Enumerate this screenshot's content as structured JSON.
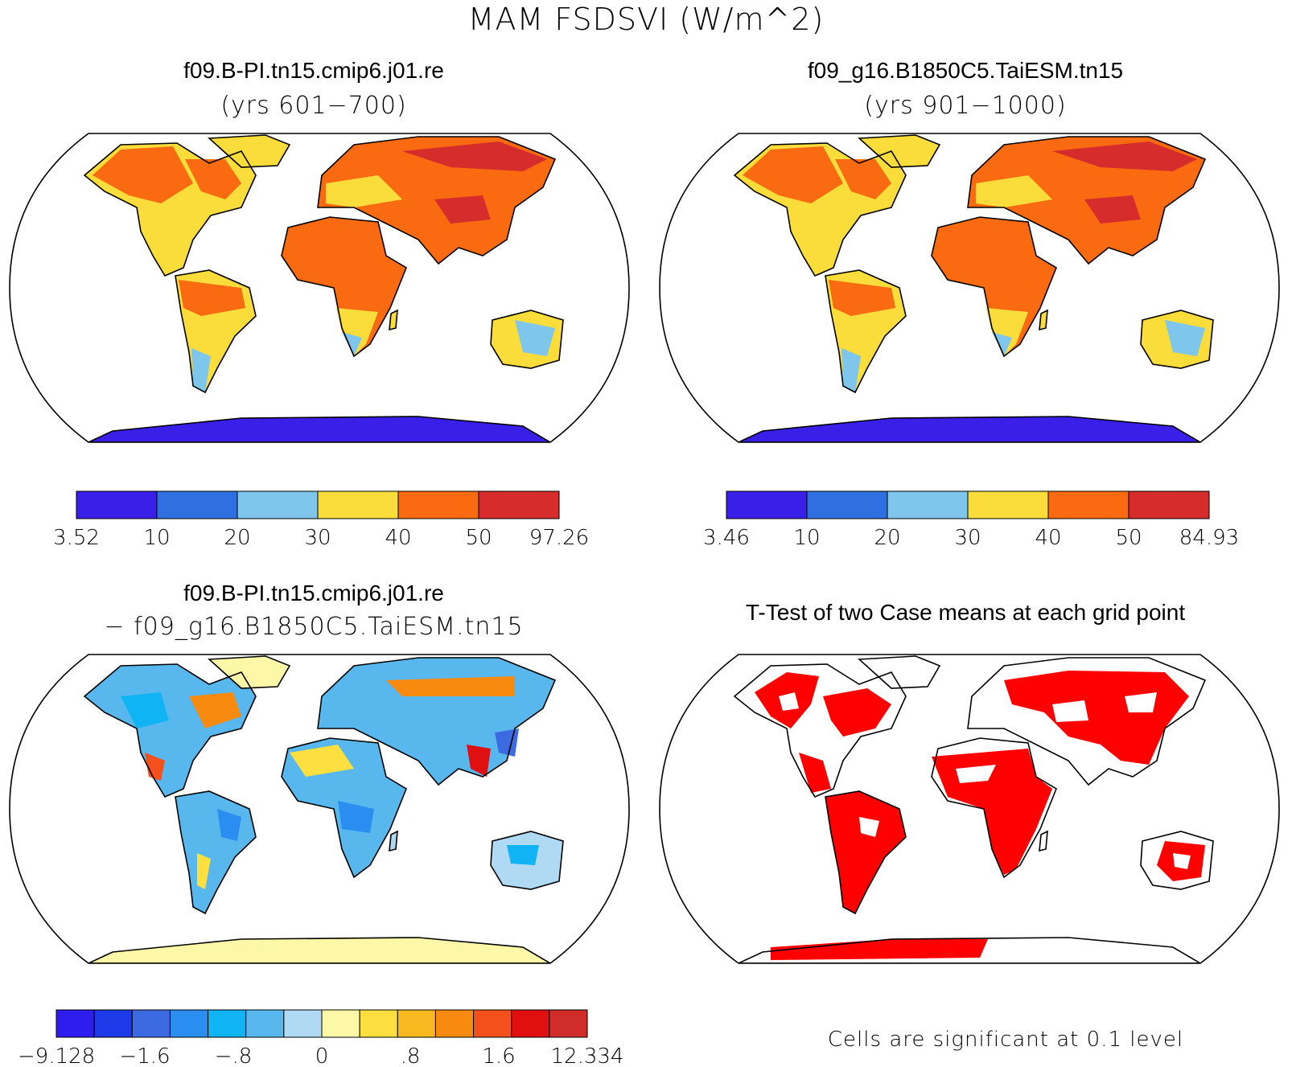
{
  "figure": {
    "title": "MAM FSDSVI (W/m^2)"
  },
  "panels": [
    {
      "title": "f09.B-PI.tn15.cmip6.j01.re",
      "subtitle": "(yrs 601−700)",
      "kind": "mean",
      "colorbar": {
        "labels": [
          "3.52",
          "10",
          "20",
          "30",
          "40",
          "50",
          "97.26"
        ],
        "colors": [
          "#3a1fe8",
          "#2f6fe0",
          "#7fc6ec",
          "#fadd3a",
          "#fa6a10",
          "#d62c2c"
        ]
      }
    },
    {
      "title": "f09_g16.B1850C5.TaiESM.tn15",
      "subtitle": "(yrs 901−1000)",
      "kind": "mean",
      "colorbar": {
        "labels": [
          "3.46",
          "10",
          "20",
          "30",
          "40",
          "50",
          "84.93"
        ],
        "colors": [
          "#3a1fe8",
          "#2f6fe0",
          "#7fc6ec",
          "#fadd3a",
          "#fa6a10",
          "#d62c2c"
        ]
      }
    },
    {
      "title": "f09.B-PI.tn15.cmip6.j01.re",
      "subtitle": "− f09_g16.B1850C5.TaiESM.tn15",
      "kind": "diff",
      "colorbar": {
        "labels": [
          "−9.128",
          "−1.6",
          "−.8",
          "0",
          ".8",
          "1.6",
          "12.334"
        ],
        "colors": [
          "#2e1cf0",
          "#1e3ae8",
          "#3c6ae0",
          "#2a8ef0",
          "#10b4f4",
          "#58b8ee",
          "#b0daf4",
          "#fdf7a8",
          "#fde040",
          "#f8b820",
          "#f88a10",
          "#f4501c",
          "#e01010",
          "#d02c2c"
        ]
      }
    },
    {
      "title": "T-Test of two Case means at each grid point",
      "subtitle": "",
      "kind": "ttest",
      "note": "Cells are significant at 0.1 level",
      "significant_color": "#ff0000"
    }
  ]
}
